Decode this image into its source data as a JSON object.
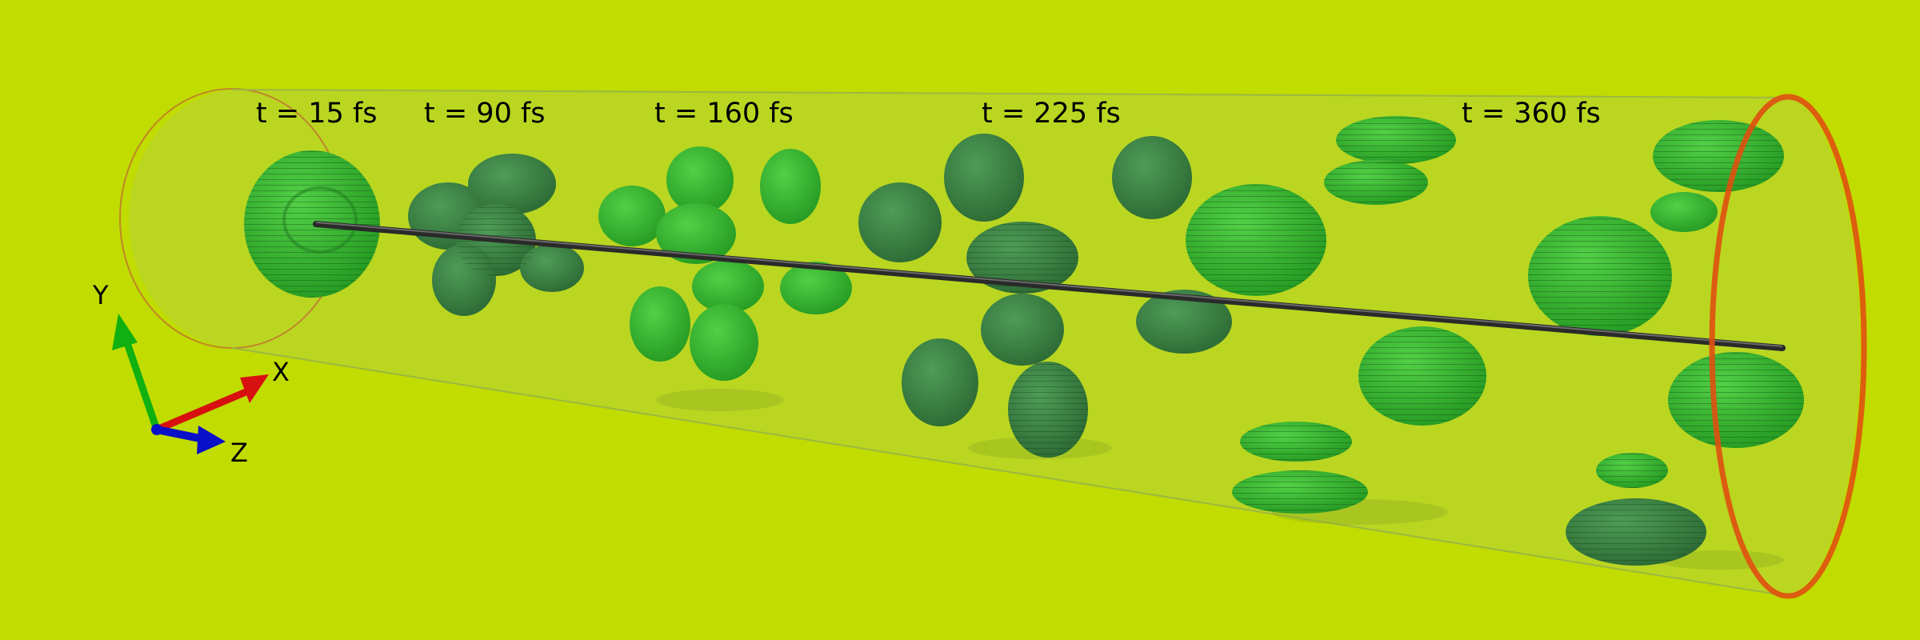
{
  "time_labels": [
    "t = 15 fs",
    "t = 90 fs",
    "t = 160 fs",
    "t = 225 fs",
    "t = 360 fs"
  ],
  "axes": {
    "x_label": "X",
    "y_label": "Y",
    "z_label": "Z",
    "x_color": "#d81010",
    "y_color": "#10b010",
    "z_color": "#0a10c8"
  },
  "colors": {
    "background": "#c0dc00",
    "tube_fill": "#b4d23c",
    "tube_end_rim": "#e05010",
    "blob_bright": "#36b030",
    "blob_dark": "#3c8a44",
    "trajectory_line": "#2a2a2a"
  }
}
